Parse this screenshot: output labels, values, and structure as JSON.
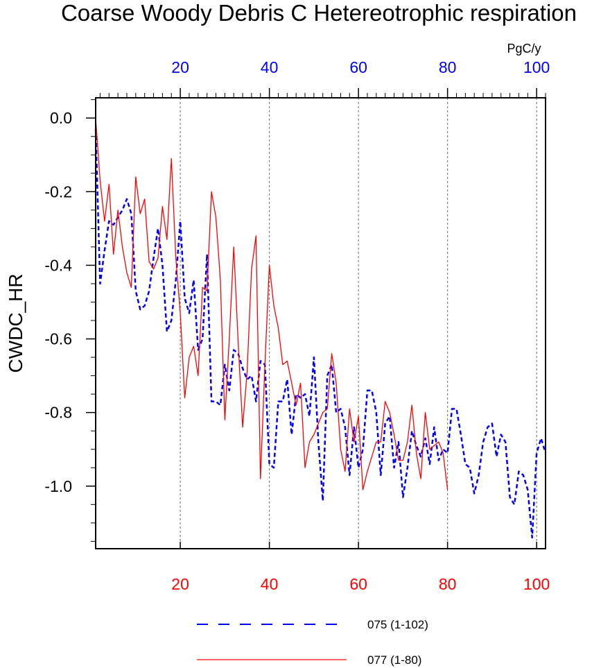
{
  "chart_data": {
    "type": "line",
    "title": "Coarse Woody Debris C Hetereotrophic respiration",
    "ylabel": "CWDC_HR",
    "units": "PgC/y",
    "xlim": [
      1,
      102
    ],
    "ylim": [
      -1.17,
      0.055
    ],
    "top_ticks": [
      20,
      40,
      60,
      80,
      100
    ],
    "bottom_ticks": [
      20,
      40,
      60,
      80,
      100
    ],
    "y_ticks": [
      0.0,
      -0.2,
      -0.4,
      -0.6,
      -0.8,
      -1.0
    ],
    "y_tick_labels": [
      "0.0",
      "-0.2",
      "-0.4",
      "-0.6",
      "-0.8",
      "-1.0"
    ],
    "colors": {
      "top_axis": "#0000ff",
      "bottom_axis": "#ff0000",
      "grid": "#666666"
    },
    "series": [
      {
        "name": "075 (1-102)",
        "color": "#0000ff",
        "style": "dashed",
        "x_range": [
          1,
          102
        ],
        "values": [
          -0.03,
          -0.45,
          -0.36,
          -0.28,
          -0.29,
          -0.27,
          -0.25,
          -0.22,
          -0.26,
          -0.47,
          -0.52,
          -0.51,
          -0.47,
          -0.38,
          -0.3,
          -0.4,
          -0.58,
          -0.55,
          -0.44,
          -0.28,
          -0.49,
          -0.53,
          -0.44,
          -0.63,
          -0.6,
          -0.37,
          -0.77,
          -0.77,
          -0.78,
          -0.67,
          -0.74,
          -0.63,
          -0.64,
          -0.68,
          -0.71,
          -0.7,
          -0.77,
          -0.66,
          -0.67,
          -0.94,
          -0.95,
          -0.77,
          -0.77,
          -0.71,
          -0.86,
          -0.75,
          -0.76,
          -0.75,
          -0.81,
          -0.65,
          -0.88,
          -1.04,
          -0.7,
          -0.67,
          -0.8,
          -0.79,
          -0.84,
          -0.97,
          -0.84,
          -0.95,
          -0.9,
          -0.74,
          -0.74,
          -0.8,
          -0.97,
          -0.83,
          -0.81,
          -0.95,
          -0.88,
          -1.03,
          -0.95,
          -0.85,
          -0.89,
          -0.92,
          -0.87,
          -0.94,
          -0.84,
          -0.93,
          -0.9,
          -0.91,
          -0.79,
          -0.79,
          -0.86,
          -0.94,
          -0.95,
          -1.02,
          -0.97,
          -0.88,
          -0.84,
          -0.83,
          -0.92,
          -0.86,
          -0.88,
          -1.03,
          -1.05,
          -0.96,
          -0.97,
          -1.01,
          -1.14,
          -0.91,
          -0.87,
          -0.91
        ]
      },
      {
        "name": "077 (1-80)",
        "color": "#ff0000",
        "style": "solid",
        "x_range": [
          1,
          80
        ],
        "values": [
          0.0,
          -0.17,
          -0.28,
          -0.18,
          -0.37,
          -0.25,
          -0.35,
          -0.42,
          -0.46,
          -0.16,
          -0.26,
          -0.22,
          -0.39,
          -0.41,
          -0.38,
          -0.24,
          -0.33,
          -0.11,
          -0.38,
          -0.53,
          -0.76,
          -0.65,
          -0.62,
          -0.7,
          -0.46,
          -0.47,
          -0.2,
          -0.27,
          -0.44,
          -0.82,
          -0.6,
          -0.35,
          -0.61,
          -0.84,
          -0.69,
          -0.41,
          -0.32,
          -0.98,
          -0.67,
          -0.4,
          -0.51,
          -0.57,
          -0.67,
          -0.66,
          -0.72,
          -0.78,
          -0.72,
          -0.95,
          -0.88,
          -0.86,
          -0.83,
          -0.8,
          -0.79,
          -0.64,
          -0.72,
          -0.9,
          -0.96,
          -0.79,
          -0.88,
          -0.81,
          -1.01,
          -0.96,
          -0.92,
          -0.88,
          -0.88,
          -0.77,
          -0.8,
          -0.86,
          -0.93,
          -0.93,
          -0.88,
          -0.78,
          -0.91,
          -0.98,
          -0.8,
          -0.9,
          -0.89,
          -0.88,
          -0.91,
          -1.01
        ]
      }
    ]
  }
}
